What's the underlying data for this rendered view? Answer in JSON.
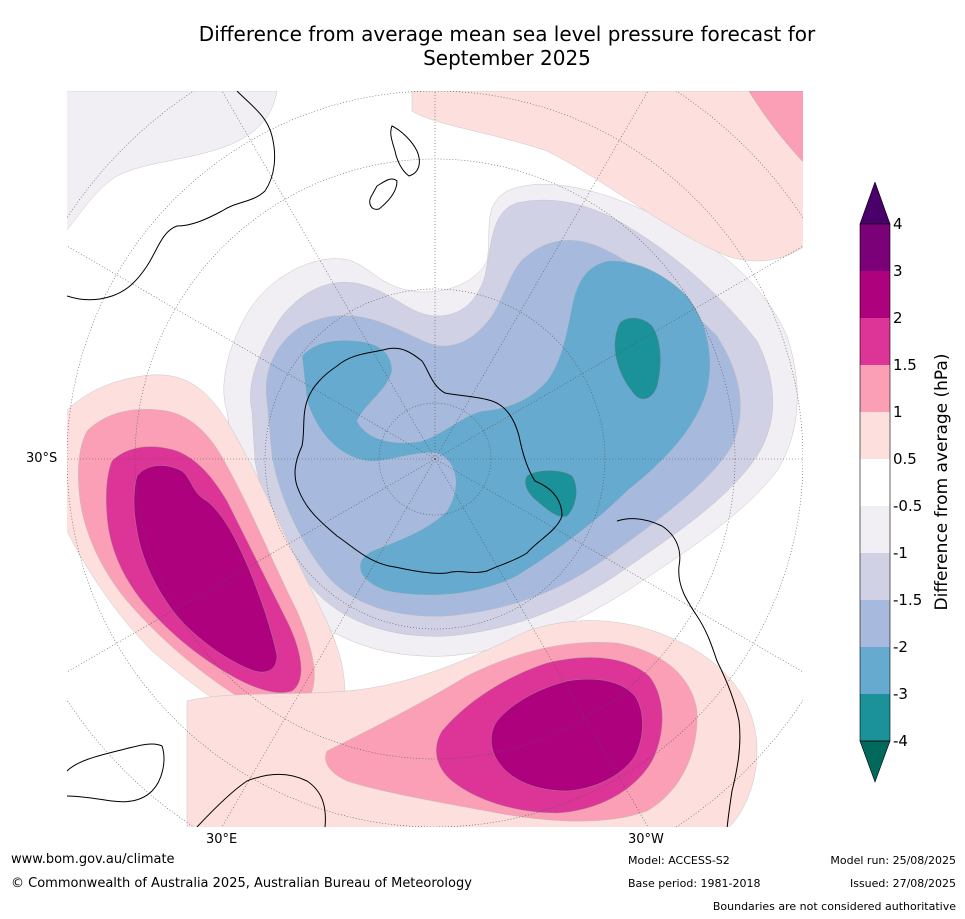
{
  "title_line1": "Difference from average mean sea level pressure forecast for",
  "title_line2": "September 2025",
  "axis_labels": {
    "lat_left": "30°S",
    "lon_bottom_left": "30°E",
    "lon_bottom_right": "30°W"
  },
  "colorbar": {
    "label": "Difference from average (hPa)",
    "ticks": [
      "-4",
      "-3",
      "-2",
      "-1.5",
      "-1",
      "-0.5",
      "0.5",
      "1",
      "1.5",
      "2",
      "3",
      "4"
    ],
    "colors": {
      "below_-4": "#00695c",
      "-4_-3": "#1b9199",
      "-3_-2": "#66aacf",
      "-2_-1.5": "#a7b9dc",
      "-1.5_-1": "#d1d1e6",
      "-1_-0.5": "#f1eef4",
      "-0.5_0.5": "#ffffff",
      "0.5_1": "#fde0dd",
      "1_1.5": "#fa9fb5",
      "1.5_2": "#dd3497",
      "2_3": "#ae017e",
      "3_4": "#7a0177",
      "above_4": "#49006a"
    }
  },
  "footer": {
    "website": "www.bom.gov.au/climate",
    "copyright": "© Commonwealth of Australia 2025, Australian Bureau of Meteorology",
    "model": "Model: ACCESS-S2",
    "base_period": "Base period: 1981-2018",
    "model_run": "Model run: 25/08/2025",
    "issued": "Issued: 27/08/2025",
    "disclaimer": "Boundaries are not considered authoritative"
  }
}
